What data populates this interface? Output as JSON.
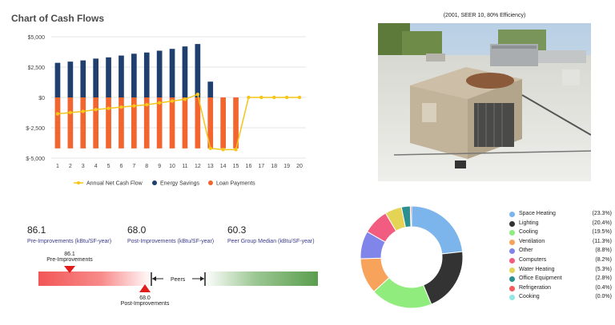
{
  "cash_flow": {
    "title": "Chart of Cash Flows"
  },
  "photo": {
    "caption": "(2001, SEER 10, 80% Efficiency)"
  },
  "metrics": [
    {
      "value": "86.1",
      "label": "Pre-Improvements (kBtu/SF-year)"
    },
    {
      "value": "68.0",
      "label": "Post-Improvements (kBtu/SF-year)"
    },
    {
      "value": "60.3",
      "label": "Peer Group Median (kBtu/SF-year)"
    }
  ],
  "benchmark": {
    "pre_value": "86.1",
    "pre_label": "Pre-Improvements",
    "post_value": "68.0",
    "post_label": "Post-Improvements",
    "peers_label": "Peers",
    "colors": {
      "red": "#f25656",
      "green": "#5a9e4e",
      "marker": "#e31b1b"
    }
  },
  "chart_data": [
    {
      "type": "bar",
      "title": "Chart of Cash Flows",
      "categories": [
        "1",
        "2",
        "3",
        "4",
        "5",
        "6",
        "7",
        "8",
        "9",
        "10",
        "11",
        "12",
        "13",
        "14",
        "15",
        "16",
        "17",
        "18",
        "19",
        "20"
      ],
      "y_ticks": [
        "$5,000",
        "$2,500",
        "$0",
        "$-2,500",
        "$-5,000"
      ],
      "ylim": [
        -5000,
        5000
      ],
      "grid": true,
      "legend_position": "bottom",
      "series": [
        {
          "name": "Annual Net Cash Flow",
          "kind": "line",
          "color": "#f5c518",
          "values": [
            -1350,
            -1250,
            -1150,
            -1000,
            -900,
            -800,
            -700,
            -600,
            -450,
            -300,
            -150,
            250,
            -4200,
            -4300,
            -4300,
            0,
            0,
            0,
            0,
            0
          ]
        },
        {
          "name": "Energy Savings",
          "kind": "bar",
          "color": "#1f3f6e",
          "values": [
            2850,
            2950,
            3050,
            3200,
            3300,
            3450,
            3600,
            3700,
            3850,
            4000,
            4200,
            4400,
            1300,
            0,
            0,
            0,
            0,
            0,
            0,
            0
          ]
        },
        {
          "name": "Loan Payments",
          "kind": "bar",
          "color": "#f2652e",
          "values": [
            -4200,
            -4200,
            -4200,
            -4200,
            -4200,
            -4200,
            -4200,
            -4200,
            -4200,
            -4200,
            -4200,
            -4200,
            -4200,
            -4200,
            -4200,
            0,
            0,
            0,
            0,
            0
          ]
        }
      ]
    },
    {
      "type": "pie",
      "donut": true,
      "legend_position": "right",
      "categories": [
        "Space Heating",
        "Lighting",
        "Cooling",
        "Ventilation",
        "Other",
        "Computers",
        "Water Heating",
        "Office Equipment",
        "Refrigeration",
        "Cooking"
      ],
      "values": [
        23.3,
        20.4,
        19.5,
        11.3,
        8.8,
        8.2,
        5.3,
        2.8,
        0.4,
        0.0
      ],
      "labels": [
        "(23.3%)",
        "(20.4%)",
        "(19.5%)",
        "(11.3%)",
        "(8.8%)",
        "(8.2%)",
        "(5.3%)",
        "(2.8%)",
        "(0.4%)",
        "(0.0%)"
      ],
      "colors": [
        "#7cb5ec",
        "#333333",
        "#90ed7d",
        "#f7a35c",
        "#8085e9",
        "#f15c80",
        "#e4d354",
        "#2b908f",
        "#f45b5b",
        "#91e8e1"
      ]
    }
  ]
}
